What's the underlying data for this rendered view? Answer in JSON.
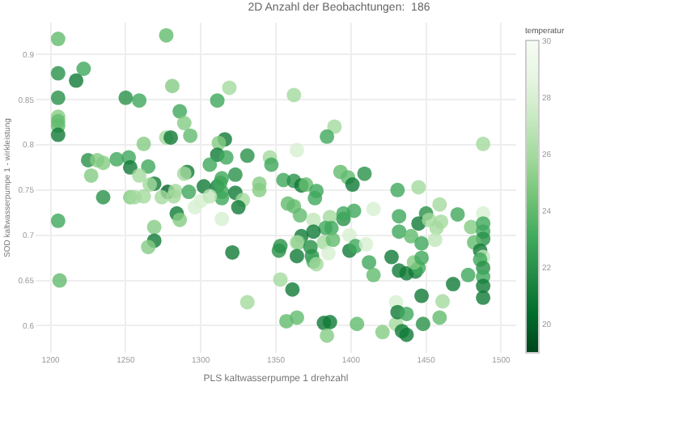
{
  "chart_data": {
    "type": "scatter",
    "title": "2D Anzahl der Beobachtungen:  186",
    "xlabel": "PLS kaltwasserpumpe 1 drehzahl",
    "ylabel": "SOD kaltwasserpumpe 1 - wirkleistung",
    "clabel": "temperatur",
    "xlim": [
      1190,
      1510
    ],
    "xticks": [
      1200,
      1250,
      1300,
      1350,
      1400,
      1450,
      1500
    ],
    "ylim": [
      0.57,
      0.935
    ],
    "yticks": [
      0.6,
      0.65,
      0.7,
      0.75,
      0.8,
      0.85,
      0.9
    ],
    "clim": [
      19,
      30
    ],
    "cticks": [
      20,
      22,
      24,
      26,
      28,
      30
    ],
    "grid": true,
    "marker": "circle",
    "x": [
      1205,
      1277,
      1205,
      1222,
      1217,
      1205,
      1205,
      1205,
      1205,
      1205,
      1281,
      1319,
      1250,
      1259,
      1311,
      1286,
      1289,
      1277,
      1280,
      1293,
      1316,
      1312,
      1262,
      1225,
      1231,
      1235,
      1244,
      1252,
      1311,
      1317,
      1331,
      1346,
      1347,
      1306,
      1253,
      1265,
      1227,
      1259,
      1291,
      1289,
      1314,
      1323,
      1269,
      1266,
      1302,
      1311,
      1313,
      1314,
      1339,
      1339,
      1278,
      1283,
      1292,
      1323,
      1235,
      1253,
      1256,
      1262,
      1274,
      1282,
      1314,
      1328,
      1300,
      1306,
      1296,
      1325,
      1284,
      1286,
      1314,
      1205,
      1269,
      1269,
      1265,
      1321,
      1206,
      1331,
      1362,
      1389,
      1384,
      1364,
      1393,
      1398,
      1409,
      1401,
      1355,
      1362,
      1367,
      1370,
      1377,
      1376,
      1431,
      1445,
      1358,
      1362,
      1366,
      1375,
      1386,
      1395,
      1395,
      1402,
      1415,
      1432,
      1450,
      1445,
      1452,
      1459,
      1460,
      1457,
      1471,
      1480,
      1488,
      1488,
      1488,
      1488,
      1482,
      1486,
      1488,
      1486,
      1488,
      1488,
      1488,
      1488,
      1478,
      1468,
      1383,
      1387,
      1375,
      1382,
      1388,
      1367,
      1365,
      1364,
      1373,
      1353,
      1352,
      1364,
      1374,
      1375,
      1377,
      1385,
      1399,
      1399,
      1403,
      1410,
      1412,
      1415,
      1427,
      1432,
      1440,
      1447,
      1456,
      1432,
      1437,
      1443,
      1445,
      1442,
      1447,
      1361,
      1353,
      1357,
      1364,
      1382,
      1386,
      1384,
      1404,
      1421,
      1430,
      1430,
      1431,
      1434,
      1437,
      1437,
      1447,
      1448,
      1459,
      1461,
      1488
    ],
    "values": [
      0.917,
      0.921,
      0.879,
      0.884,
      0.871,
      0.852,
      0.831,
      0.826,
      0.821,
      0.811,
      0.865,
      0.863,
      0.852,
      0.849,
      0.849,
      0.837,
      0.824,
      0.808,
      0.808,
      0.81,
      0.806,
      0.802,
      0.801,
      0.783,
      0.783,
      0.78,
      0.784,
      0.786,
      0.789,
      0.786,
      0.788,
      0.786,
      0.778,
      0.778,
      0.775,
      0.776,
      0.766,
      0.766,
      0.77,
      0.768,
      0.763,
      0.767,
      0.757,
      0.756,
      0.754,
      0.754,
      0.758,
      0.748,
      0.757,
      0.75,
      0.748,
      0.749,
      0.748,
      0.747,
      0.742,
      0.742,
      0.742,
      0.743,
      0.742,
      0.743,
      0.741,
      0.739,
      0.738,
      0.743,
      0.731,
      0.731,
      0.724,
      0.717,
      0.718,
      0.716,
      0.709,
      0.694,
      0.687,
      0.681,
      0.65,
      0.626,
      0.855,
      0.82,
      0.809,
      0.794,
      0.77,
      0.764,
      0.768,
      0.756,
      0.761,
      0.76,
      0.755,
      0.756,
      0.749,
      0.741,
      0.75,
      0.753,
      0.735,
      0.732,
      0.722,
      0.717,
      0.72,
      0.718,
      0.724,
      0.727,
      0.729,
      0.721,
      0.724,
      0.713,
      0.717,
      0.734,
      0.715,
      0.708,
      0.723,
      0.709,
      0.724,
      0.713,
      0.704,
      0.696,
      0.692,
      0.683,
      0.676,
      0.673,
      0.664,
      0.654,
      0.644,
      0.631,
      0.656,
      0.646,
      0.708,
      0.708,
      0.704,
      0.692,
      0.695,
      0.699,
      0.692,
      0.692,
      0.687,
      0.688,
      0.683,
      0.677,
      0.677,
      0.671,
      0.668,
      0.68,
      0.7,
      0.683,
      0.688,
      0.69,
      0.67,
      0.656,
      0.676,
      0.704,
      0.699,
      0.691,
      0.695,
      0.661,
      0.658,
      0.66,
      0.664,
      0.67,
      0.675,
      0.64,
      0.651,
      0.605,
      0.609,
      0.603,
      0.604,
      0.589,
      0.602,
      0.593,
      0.602,
      0.626,
      0.615,
      0.594,
      0.59,
      0.613,
      0.633,
      0.602,
      0.609,
      0.627,
      0.801
    ],
    "cvalues": [
      24,
      24,
      22,
      23,
      21,
      22,
      25,
      24,
      24,
      21,
      25,
      26,
      22,
      23,
      23,
      23,
      25,
      26,
      21,
      24,
      21,
      25,
      25,
      22,
      25,
      25,
      23,
      23,
      21,
      23,
      22,
      26,
      23,
      23,
      21,
      23,
      25,
      26,
      21,
      26,
      23,
      22,
      21,
      26,
      21,
      21,
      23,
      23,
      25,
      25,
      20,
      26,
      23,
      21,
      22,
      25,
      26,
      26,
      26,
      26,
      23,
      26,
      28,
      27,
      28,
      21,
      21,
      25,
      28,
      23,
      25,
      21,
      25,
      21,
      24,
      26,
      26,
      26,
      23,
      28,
      24,
      24,
      22,
      21,
      23,
      22,
      21,
      24,
      23,
      23,
      23,
      26,
      24,
      24,
      24,
      27,
      26,
      22,
      23,
      23,
      28,
      23,
      22,
      21,
      26,
      26,
      26,
      26,
      23,
      25,
      28,
      23,
      23,
      22,
      24,
      21,
      27,
      23,
      22,
      23,
      21,
      21,
      23,
      21,
      23,
      23,
      21,
      26,
      24,
      21,
      24,
      26,
      22,
      22,
      22,
      21,
      22,
      23,
      26,
      28,
      28,
      21,
      23,
      28,
      23,
      24,
      21,
      23,
      24,
      23,
      27,
      21,
      21,
      21,
      23,
      25,
      23,
      21,
      26,
      24,
      24,
      21,
      21,
      25,
      24,
      25,
      26,
      28,
      21,
      21,
      21,
      23,
      21,
      22,
      24,
      26,
      26
    ]
  }
}
